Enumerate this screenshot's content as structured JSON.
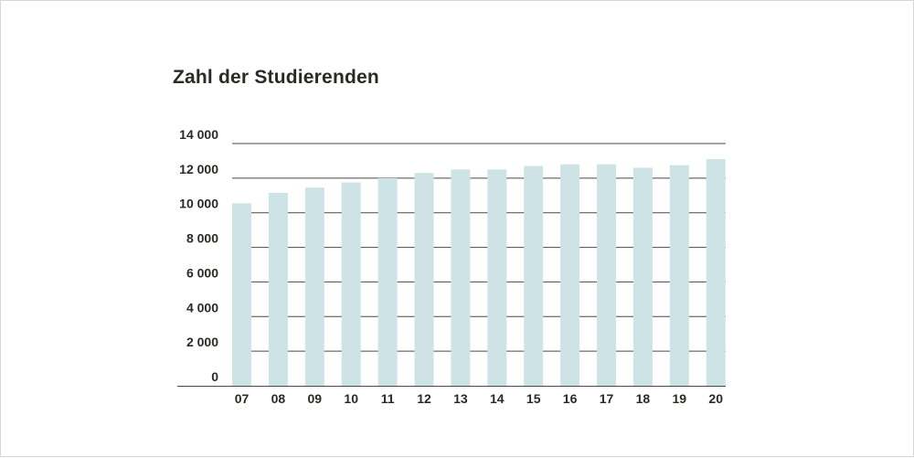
{
  "chart_data": {
    "type": "bar",
    "title": "Zahl der Studierenden",
    "xlabel": "",
    "ylabel": "",
    "categories": [
      "07",
      "08",
      "09",
      "10",
      "11",
      "12",
      "13",
      "14",
      "15",
      "16",
      "17",
      "18",
      "19",
      "20"
    ],
    "values": [
      10550,
      11150,
      11450,
      11750,
      12000,
      12300,
      12500,
      12500,
      12700,
      12800,
      12800,
      12600,
      12750,
      13100
    ],
    "ylim": [
      0,
      14000
    ],
    "yticks": [
      0,
      2000,
      4000,
      6000,
      8000,
      10000,
      12000,
      14000
    ],
    "ytick_labels": [
      "0",
      "2 000",
      "4 000",
      "6 000",
      "8 000",
      "10 000",
      "12 000",
      "14 000"
    ],
    "grid": true,
    "legend": "none",
    "colors": {
      "bar": "#cde3e6",
      "grid": "#4a4944",
      "text": "#2b2a24"
    }
  }
}
